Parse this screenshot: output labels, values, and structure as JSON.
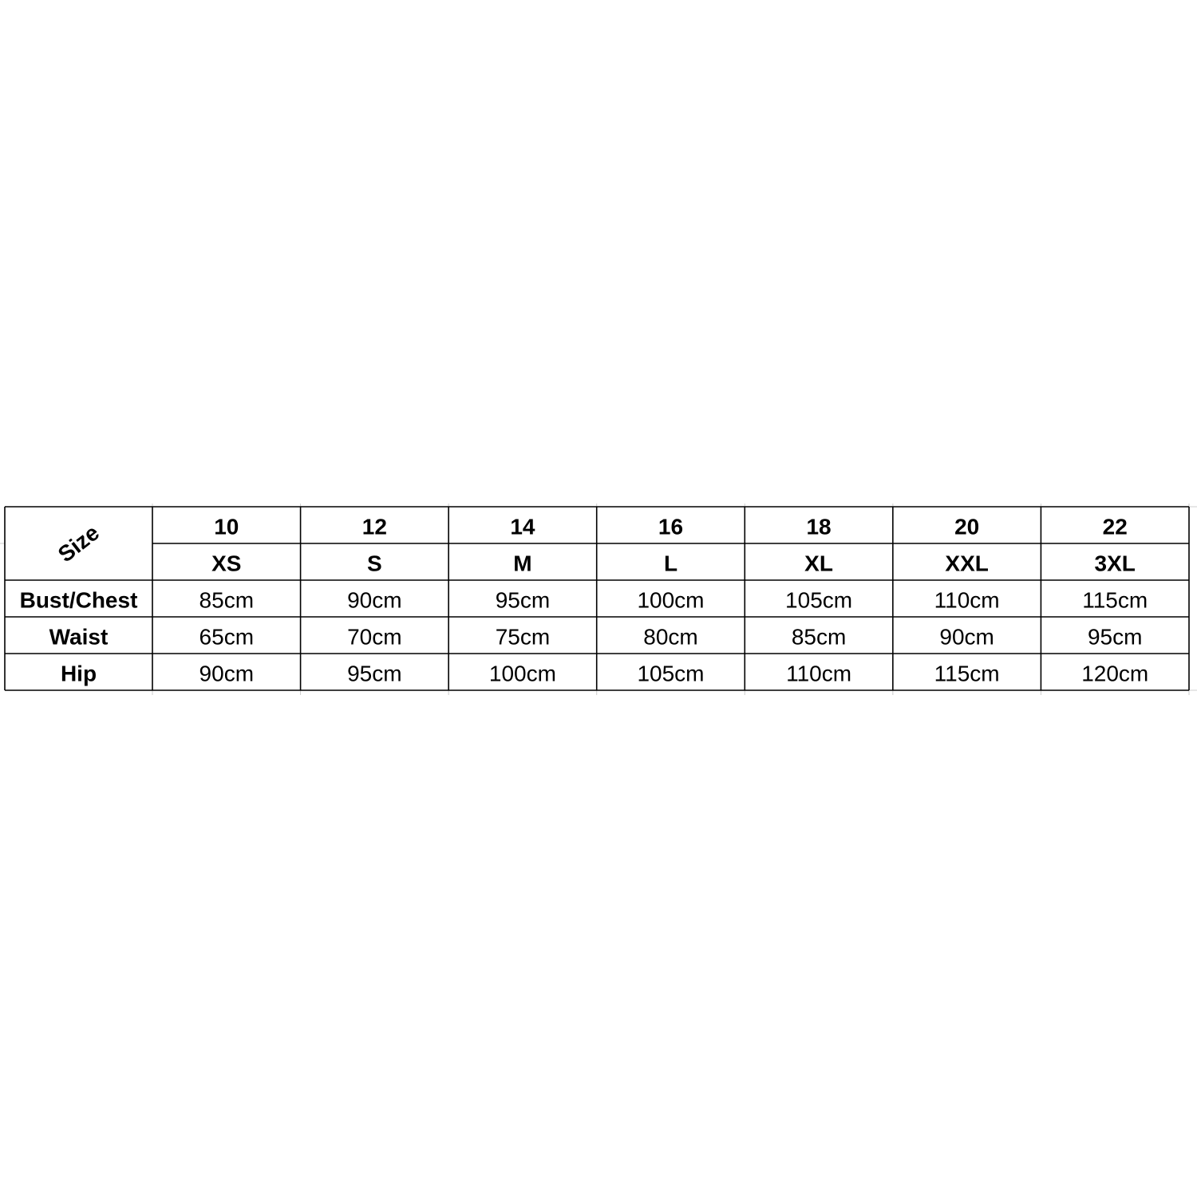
{
  "table": {
    "corner": "Size",
    "header_numbers": [
      "10",
      "12",
      "14",
      "16",
      "18",
      "20",
      "22"
    ],
    "header_letters": [
      "XS",
      "S",
      "M",
      "L",
      "XL",
      "XXL",
      "3XL"
    ],
    "rows": [
      {
        "label": "Bust/Chest",
        "cells": [
          "85cm",
          "90cm",
          "95cm",
          "100cm",
          "105cm",
          "110cm",
          "115cm"
        ]
      },
      {
        "label": "Waist",
        "cells": [
          "65cm",
          "70cm",
          "75cm",
          "80cm",
          "85cm",
          "90cm",
          "95cm"
        ]
      },
      {
        "label": "Hip",
        "cells": [
          "90cm",
          "95cm",
          "100cm",
          "105cm",
          "110cm",
          "115cm",
          "120cm"
        ]
      }
    ]
  }
}
